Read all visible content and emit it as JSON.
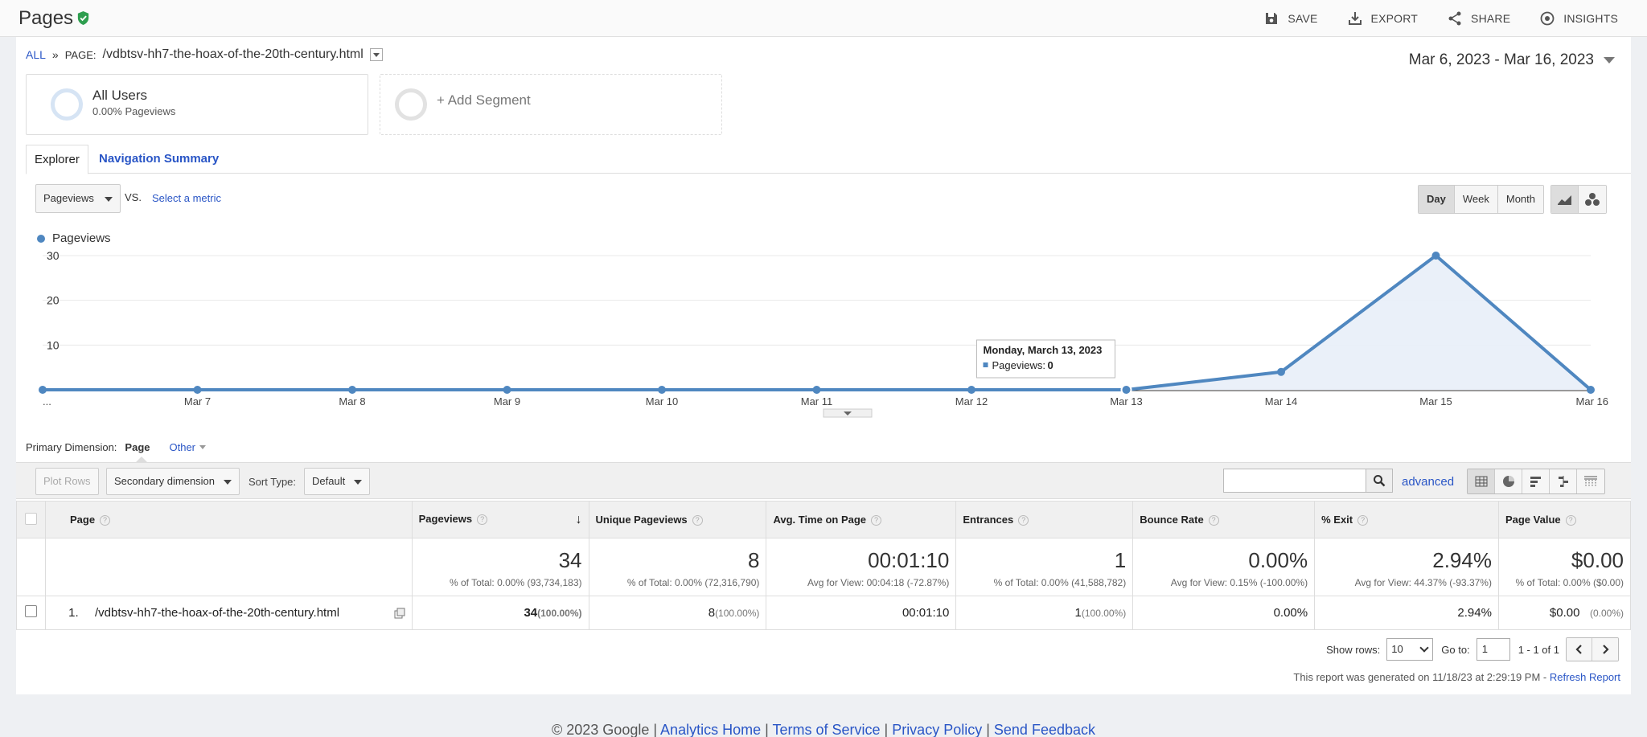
{
  "header": {
    "title": "Pages",
    "actions": [
      {
        "label": "SAVE",
        "icon": "save-icon"
      },
      {
        "label": "EXPORT",
        "icon": "export-icon"
      },
      {
        "label": "SHARE",
        "icon": "share-icon"
      },
      {
        "label": "INSIGHTS",
        "icon": "insights-icon"
      }
    ]
  },
  "breadcrumb": {
    "all": "ALL",
    "sep": "»",
    "label": "PAGE:",
    "page": "/vdbtsv-hh7-the-hoax-of-the-20th-century.html"
  },
  "date_range": "Mar 6, 2023 - Mar 16, 2023",
  "segments": {
    "primary": {
      "name": "All Users",
      "sub": "0.00% Pageviews"
    },
    "add": "+ Add Segment"
  },
  "tabs": {
    "explorer": "Explorer",
    "nav_summary": "Navigation Summary"
  },
  "metric_bar": {
    "metric": "Pageviews",
    "vs": "VS.",
    "select": "Select a metric"
  },
  "granularity": {
    "day": "Day",
    "week": "Week",
    "month": "Month"
  },
  "legend": {
    "label": "Pageviews",
    "color": "#4f87c0"
  },
  "chart_data": {
    "type": "area",
    "series": [
      {
        "name": "Pageviews",
        "values": [
          0,
          0,
          0,
          0,
          0,
          0,
          0,
          0,
          4,
          30,
          0
        ]
      }
    ],
    "categories": [
      "...",
      "Mar 7",
      "Mar 8",
      "Mar 9",
      "Mar 10",
      "Mar 11",
      "Mar 12",
      "Mar 13",
      "Mar 14",
      "Mar 15",
      "Mar 16"
    ],
    "y_ticks": [
      "10",
      "20",
      "30"
    ],
    "ylim": [
      0,
      30
    ],
    "grid": true,
    "tooltip": {
      "date": "Monday, March 13, 2023",
      "label": "Pageviews:",
      "value": "0"
    },
    "color": "#4f87c0"
  },
  "primary_dimension": {
    "label": "Primary Dimension:",
    "current": "Page",
    "other": "Other"
  },
  "toolbar": {
    "plot_rows": "Plot Rows",
    "secondary": "Secondary dimension",
    "sort_label": "Sort Type:",
    "sort_value": "Default",
    "advanced": "advanced"
  },
  "table": {
    "headers": {
      "page": "Page",
      "pageviews": "Pageviews",
      "unique": "Unique Pageviews",
      "avg_time": "Avg. Time on Page",
      "entrances": "Entrances",
      "bounce": "Bounce Rate",
      "exit": "% Exit",
      "value": "Page Value"
    },
    "totals": {
      "pageviews": {
        "big": "34",
        "small": "% of Total: 0.00% (93,734,183)"
      },
      "unique": {
        "big": "8",
        "small": "% of Total: 0.00% (72,316,790)"
      },
      "avg_time": {
        "big": "00:01:10",
        "small": "Avg for View: 00:04:18 (-72.87%)"
      },
      "entrances": {
        "big": "1",
        "small": "% of Total: 0.00% (41,588,782)"
      },
      "bounce": {
        "big": "0.00%",
        "small": "Avg for View: 0.15% (-100.00%)"
      },
      "exit": {
        "big": "2.94%",
        "small": "Avg for View: 44.37% (-93.37%)"
      },
      "value": {
        "big": "$0.00",
        "small": "% of Total: 0.00% ($0.00)"
      }
    },
    "rows": [
      {
        "index": "1.",
        "page": "/vdbtsv-hh7-the-hoax-of-the-20th-century.html",
        "pageviews": "34",
        "pageviews_pct": "(100.00%)",
        "unique": "8",
        "unique_pct": "(100.00%)",
        "avg_time": "00:01:10",
        "entrances": "1",
        "entrances_pct": "(100.00%)",
        "bounce": "0.00%",
        "exit": "2.94%",
        "value": "$0.00",
        "value_pct": "(0.00%)"
      }
    ]
  },
  "paging": {
    "show_rows_label": "Show rows:",
    "show_rows": "10",
    "goto_label": "Go to:",
    "goto": "1",
    "range": "1 - 1 of 1"
  },
  "generated": {
    "text": "This report was generated on 11/18/23 at 2:29:19 PM - ",
    "refresh": "Refresh Report"
  },
  "footer": {
    "copyright": "© 2023 Google",
    "links": [
      "Analytics Home",
      "Terms of Service",
      "Privacy Policy",
      "Send Feedback"
    ]
  }
}
